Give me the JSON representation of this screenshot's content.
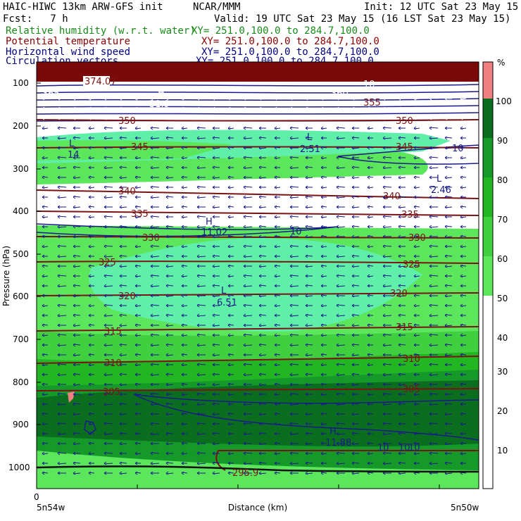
{
  "header": {
    "model": "HAIC-HIWC 13km ARW-GFS init",
    "center": "NCAR/MMM",
    "init": "Init: 12 UTC Sat 23 May 15",
    "fcst": "Fcst:   7 h",
    "valid": "Valid: 19 UTC Sat 23 May 15 (16 LST Sat 23 May 15)"
  },
  "legend": [
    {
      "label": "Relative humidity (w.r.t. water)",
      "xy": "XY= 251.0,100.0 to 284.7,100.0",
      "color": "#1a8a1a"
    },
    {
      "label": "Potential temperature",
      "xy": "XY= 251.0,100.0 to 284.7,100.0",
      "color": "#8b0000"
    },
    {
      "label": "Horizontal wind speed",
      "xy": "XY= 251.0,100.0 to 284.7,100.0",
      "color": "#000080"
    },
    {
      "label": "Circulation vectors",
      "xy": "XY= 251.0,100.0 to 284.7,100.0",
      "color": "#000080"
    }
  ],
  "axes": {
    "ylabel": "Pressure (hPa)",
    "xlabel": "Distance (km)",
    "yticks": [
      "100",
      "200",
      "300",
      "400",
      "500",
      "600",
      "700",
      "800",
      "900",
      "1000"
    ],
    "x_origin": "0",
    "x_left_label": "5n54w",
    "x_right_label": "5n50w"
  },
  "colorbar": {
    "unit": "%",
    "ticks": [
      "10",
      "20",
      "30",
      "40",
      "50",
      "60",
      "70",
      "80",
      "90",
      "100"
    ],
    "colors": {
      "c50": "#5fefa9",
      "c60": "#5ce65c",
      "c70": "#3fcf3f",
      "c80": "#22b622",
      "c90": "#159a2a",
      "c100": "#0b6e1e",
      "c110": "#f08080",
      "c0": "#ffffff"
    }
  },
  "theta_labels": [
    {
      "text": "374.07"
    },
    {
      "text": "365"
    },
    {
      "text": "360"
    },
    {
      "text": "355"
    },
    {
      "text": "350"
    },
    {
      "text": "350"
    },
    {
      "text": "345"
    },
    {
      "text": "345"
    },
    {
      "text": "340"
    },
    {
      "text": "340"
    },
    {
      "text": "335"
    },
    {
      "text": "335"
    },
    {
      "text": "330"
    },
    {
      "text": "330"
    },
    {
      "text": "325"
    },
    {
      "text": "325"
    },
    {
      "text": "320"
    },
    {
      "text": "320"
    },
    {
      "text": "315"
    },
    {
      "text": "315"
    },
    {
      "text": "310"
    },
    {
      "text": "310"
    },
    {
      "text": "305"
    },
    {
      "text": "305"
    },
    {
      "text": "295.9"
    }
  ],
  "wind_labels": [
    {
      "text": "10"
    },
    {
      "text": "10"
    },
    {
      "text": "10"
    },
    {
      "text": "10"
    },
    {
      "text": "10"
    },
    {
      "text": "10"
    }
  ],
  "extrema": [
    {
      "mark": "H",
      "value": "31.9"
    },
    {
      "mark": "L",
      "value": "14"
    },
    {
      "mark": "L",
      "value": "2.51"
    },
    {
      "mark": "L",
      "value": "2.46"
    },
    {
      "mark": "H",
      "value": "11.02"
    },
    {
      "mark": "L",
      "value": "6.51"
    },
    {
      "mark": "H",
      "value": "11.88"
    }
  ]
}
